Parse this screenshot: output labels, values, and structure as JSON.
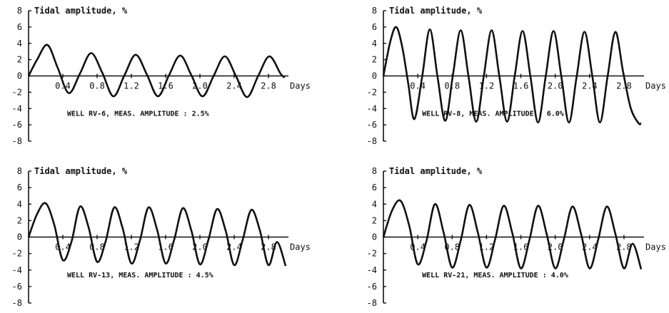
{
  "chart_data": [
    {
      "type": "line",
      "title": "Tidal amplitude, %",
      "xlabel": "Days",
      "annotation": "WELL RV-6, MEAS. AMPLITUDE : 2.5%",
      "xlim": [
        0,
        3.0
      ],
      "ylim": [
        -8,
        8
      ],
      "xticks": [
        "0.4",
        "0.8",
        "1.2",
        "1.6",
        "2.0",
        "2.4",
        "2.8"
      ],
      "yticks": [
        "8",
        "6",
        "4",
        "2",
        "0",
        "-2",
        "-4",
        "-6",
        "-8"
      ],
      "series": [
        {
          "x": [
            0,
            0.1,
            0.22,
            0.34,
            0.47,
            0.6,
            0.73,
            0.86,
            0.99,
            1.12,
            1.25,
            1.38,
            1.51,
            1.64,
            1.77,
            1.9,
            2.03,
            2.16,
            2.29,
            2.42,
            2.55,
            2.68,
            2.81,
            2.94,
            2.99
          ],
          "y": [
            0,
            2.0,
            3.8,
            1.0,
            -2.1,
            0.3,
            2.8,
            0.4,
            -2.5,
            0.1,
            2.6,
            0.2,
            -2.5,
            0.1,
            2.5,
            0.1,
            -2.5,
            0.0,
            2.4,
            0.0,
            -2.6,
            0.0,
            2.4,
            0.3,
            -0.2
          ]
        }
      ]
    },
    {
      "type": "line",
      "title": "Tidal amplitude, %",
      "xlabel": "Days",
      "annotation": "WELL RV-8, MEAS. AMPLITUDE : 6.0%",
      "xlim": [
        0,
        3.0
      ],
      "ylim": [
        -8,
        8
      ],
      "xticks": [
        "0.4",
        "0.8",
        "1.2",
        "1.6",
        "2.0",
        "2.4",
        "2.8"
      ],
      "yticks": [
        "8",
        "6",
        "4",
        "2",
        "0",
        "-2",
        "-4",
        "-6",
        "-8"
      ],
      "series": [
        {
          "x": [
            0,
            0.08,
            0.15,
            0.22,
            0.29,
            0.36,
            0.45,
            0.54,
            0.63,
            0.72,
            0.81,
            0.9,
            0.99,
            1.08,
            1.17,
            1.26,
            1.35,
            1.44,
            1.53,
            1.62,
            1.71,
            1.8,
            1.89,
            1.98,
            2.07,
            2.16,
            2.25,
            2.34,
            2.43,
            2.52,
            2.61,
            2.7,
            2.79,
            2.88,
            2.97,
            3.0
          ],
          "y": [
            0,
            4.2,
            6.0,
            3.5,
            -1.0,
            -5.3,
            -0.2,
            5.7,
            -0.1,
            -5.5,
            0.2,
            5.6,
            0.0,
            -5.6,
            0.1,
            5.6,
            -0.1,
            -5.6,
            0.1,
            5.5,
            0.0,
            -5.7,
            0.0,
            5.5,
            0.0,
            -5.7,
            0.0,
            5.4,
            0.1,
            -5.7,
            0.0,
            5.4,
            0.5,
            -4.0,
            -5.8,
            -5.8
          ]
        }
      ]
    },
    {
      "type": "line",
      "title": "Tidal amplitude, %",
      "xlabel": "Days",
      "annotation": "WELL RV-13, MEAS. AMPLITUDE : 4.5%",
      "xlim": [
        0,
        3.0
      ],
      "ylim": [
        -8,
        8
      ],
      "xticks": [
        "0.4",
        "0.8",
        "1.2",
        "1.6",
        "2.0",
        "2.4",
        "2.8"
      ],
      "yticks": [
        "8",
        "6",
        "4",
        "2",
        "0",
        "-2",
        "-4",
        "-6",
        "-8"
      ],
      "series": [
        {
          "x": [
            0,
            0.1,
            0.2,
            0.3,
            0.4,
            0.5,
            0.6,
            0.7,
            0.8,
            0.9,
            1.0,
            1.1,
            1.2,
            1.3,
            1.4,
            1.5,
            1.6,
            1.7,
            1.8,
            1.9,
            2.0,
            2.1,
            2.2,
            2.3,
            2.4,
            2.5,
            2.6,
            2.7,
            2.8,
            2.9,
            3.0
          ],
          "y": [
            0,
            2.8,
            4.1,
            1.5,
            -2.8,
            -0.6,
            3.7,
            1.2,
            -3.0,
            -0.5,
            3.6,
            1.0,
            -3.2,
            -0.4,
            3.6,
            0.9,
            -3.2,
            -0.3,
            3.5,
            0.8,
            -3.3,
            -0.3,
            3.4,
            0.8,
            -3.4,
            -0.3,
            3.3,
            0.8,
            -3.4,
            -0.6,
            -3.5
          ]
        }
      ]
    },
    {
      "type": "line",
      "title": "Tidal amplitude, %",
      "xlabel": "Days",
      "annotation": "WELL RV-21, MEAS. AMPLITUDE : 4.0%",
      "xlim": [
        0,
        3.0
      ],
      "ylim": [
        -8,
        8
      ],
      "xticks": [
        "0.4",
        "0.8",
        "1.2",
        "1.6",
        "2.0",
        "2.4",
        "2.8"
      ],
      "yticks": [
        "8",
        "6",
        "4",
        "2",
        "0",
        "-2",
        "-4",
        "-6",
        "-8"
      ],
      "series": [
        {
          "x": [
            0,
            0.1,
            0.2,
            0.3,
            0.4,
            0.5,
            0.6,
            0.7,
            0.8,
            0.9,
            1.0,
            1.1,
            1.2,
            1.3,
            1.4,
            1.5,
            1.6,
            1.7,
            1.8,
            1.9,
            2.0,
            2.1,
            2.2,
            2.3,
            2.4,
            2.5,
            2.6,
            2.7,
            2.8,
            2.9,
            3.0
          ],
          "y": [
            0,
            3.2,
            4.4,
            1.4,
            -3.3,
            -0.5,
            4.0,
            0.6,
            -3.7,
            -0.4,
            3.9,
            0.5,
            -3.7,
            -0.3,
            3.8,
            0.5,
            -3.8,
            -0.3,
            3.8,
            0.4,
            -3.8,
            -0.3,
            3.7,
            0.4,
            -3.8,
            -0.3,
            3.7,
            0.4,
            -3.8,
            -0.8,
            -3.9
          ]
        }
      ]
    }
  ]
}
